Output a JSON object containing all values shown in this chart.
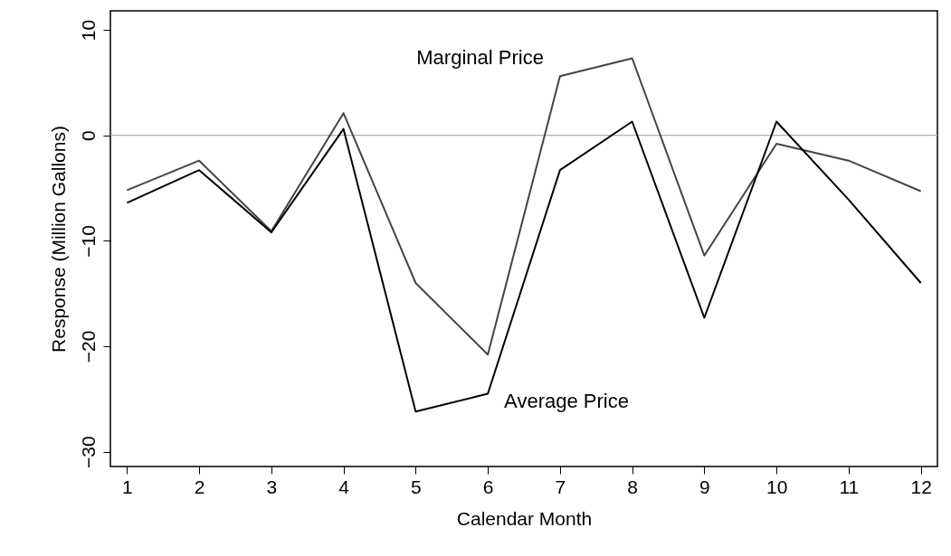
{
  "chart_data": {
    "type": "line",
    "xlabel": "Calendar Month",
    "ylabel": "Response (Million Gallons)",
    "x": [
      1,
      2,
      3,
      4,
      5,
      6,
      7,
      8,
      9,
      10,
      11,
      12
    ],
    "series": [
      {
        "name": "Marginal Price",
        "color": "#444444",
        "values": [
          -5.2,
          -2.4,
          -9.1,
          2.1,
          -14.0,
          -20.8,
          5.6,
          7.3,
          -11.4,
          -0.8,
          -2.4,
          -5.3
        ]
      },
      {
        "name": "Average Price",
        "color": "#000000",
        "values": [
          -6.4,
          -3.3,
          -9.2,
          0.6,
          -26.2,
          -24.5,
          -3.3,
          1.3,
          -17.3,
          1.3,
          -6.1,
          -14.0
        ]
      }
    ],
    "xlim": [
      0.77,
      12.23
    ],
    "ylim": [
      -31.4,
      11.8
    ],
    "xticks": [
      1,
      2,
      3,
      4,
      5,
      6,
      7,
      8,
      9,
      10,
      11,
      12
    ],
    "yticks": [
      -30,
      -20,
      -10,
      0,
      10
    ],
    "ref_lines": [
      {
        "axis": "y",
        "value": 0,
        "color": "#b0b0b0"
      }
    ],
    "grid": false,
    "legend": false,
    "marker": "none",
    "line_style": "solid"
  }
}
